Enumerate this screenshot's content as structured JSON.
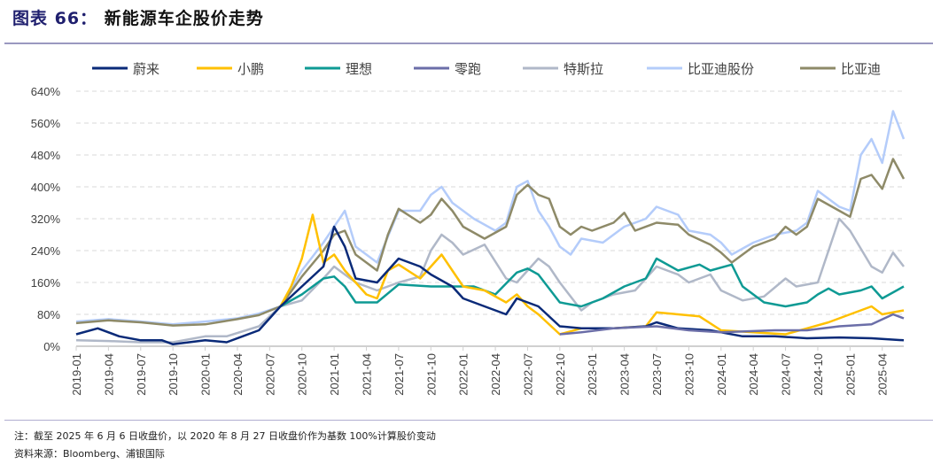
{
  "title": {
    "label": "图表 66：",
    "text": "新能源车企股价走势"
  },
  "footnote": "注：截至 2025 年 6 月 6 日收盘价，以 2020 年 8 月 27 日收盘价作为基数 100%计算股价变动",
  "source": "资料来源：Bloomberg、浦银国际",
  "chart_data": {
    "type": "line",
    "title": "新能源车企股价走势",
    "xlabel": "",
    "ylabel": "",
    "ylim": [
      0,
      640
    ],
    "yticks": [
      "0%",
      "80%",
      "160%",
      "240%",
      "320%",
      "400%",
      "480%",
      "560%",
      "640%"
    ],
    "xrange": [
      "2019-01",
      "2025-06"
    ],
    "xticks": [
      "2019-01",
      "2019-04",
      "2019-07",
      "2019-10",
      "2020-01",
      "2020-04",
      "2020-07",
      "2020-10",
      "2021-01",
      "2021-04",
      "2021-07",
      "2021-10",
      "2022-01",
      "2022-04",
      "2022-07",
      "2022-10",
      "2023-01",
      "2023-04",
      "2023-07",
      "2023-10",
      "2024-01",
      "2024-04",
      "2024-07",
      "2024-10",
      "2025-01",
      "2025-04"
    ],
    "grid": true,
    "legend": "top",
    "series": [
      {
        "name": "比亚迪股份",
        "color": "#b4ccfa",
        "points": [
          [
            "2019-01",
            62
          ],
          [
            "2019-04",
            68
          ],
          [
            "2019-07",
            62
          ],
          [
            "2019-10",
            55
          ],
          [
            "2020-01",
            62
          ],
          [
            "2020-04",
            70
          ],
          [
            "2020-06",
            82
          ],
          [
            "2020-08",
            100
          ],
          [
            "2020-10",
            190
          ],
          [
            "2020-12",
            260
          ],
          [
            "2021-02",
            340
          ],
          [
            "2021-03",
            250
          ],
          [
            "2021-05",
            210
          ],
          [
            "2021-07",
            340
          ],
          [
            "2021-09",
            340
          ],
          [
            "2021-10",
            380
          ],
          [
            "2021-11",
            400
          ],
          [
            "2021-12",
            360
          ],
          [
            "2022-02",
            320
          ],
          [
            "2022-04",
            290
          ],
          [
            "2022-05",
            310
          ],
          [
            "2022-06",
            400
          ],
          [
            "2022-07",
            415
          ],
          [
            "2022-08",
            340
          ],
          [
            "2022-09",
            300
          ],
          [
            "2022-10",
            250
          ],
          [
            "2022-11",
            230
          ],
          [
            "2022-12",
            270
          ],
          [
            "2023-02",
            260
          ],
          [
            "2023-04",
            300
          ],
          [
            "2023-06",
            320
          ],
          [
            "2023-07",
            350
          ],
          [
            "2023-09",
            330
          ],
          [
            "2023-10",
            290
          ],
          [
            "2023-12",
            280
          ],
          [
            "2024-01",
            260
          ],
          [
            "2024-02",
            230
          ],
          [
            "2024-04",
            260
          ],
          [
            "2024-06",
            280
          ],
          [
            "2024-08",
            290
          ],
          [
            "2024-09",
            310
          ],
          [
            "2024-10",
            390
          ],
          [
            "2024-12",
            350
          ],
          [
            "2025-01",
            340
          ],
          [
            "2025-02",
            480
          ],
          [
            "2025-03",
            520
          ],
          [
            "2025-04",
            460
          ],
          [
            "2025-05",
            590
          ],
          [
            "2025-06",
            520
          ]
        ]
      },
      {
        "name": "比亚迪",
        "color": "#8e8a68",
        "points": [
          [
            "2019-01",
            58
          ],
          [
            "2019-04",
            65
          ],
          [
            "2019-07",
            60
          ],
          [
            "2019-10",
            52
          ],
          [
            "2020-01",
            55
          ],
          [
            "2020-04",
            68
          ],
          [
            "2020-06",
            78
          ],
          [
            "2020-08",
            100
          ],
          [
            "2020-10",
            175
          ],
          [
            "2020-12",
            240
          ],
          [
            "2021-01",
            280
          ],
          [
            "2021-02",
            290
          ],
          [
            "2021-03",
            230
          ],
          [
            "2021-05",
            190
          ],
          [
            "2021-06",
            280
          ],
          [
            "2021-07",
            345
          ],
          [
            "2021-09",
            310
          ],
          [
            "2021-10",
            330
          ],
          [
            "2021-11",
            370
          ],
          [
            "2021-12",
            340
          ],
          [
            "2022-01",
            300
          ],
          [
            "2022-03",
            270
          ],
          [
            "2022-05",
            300
          ],
          [
            "2022-06",
            380
          ],
          [
            "2022-07",
            405
          ],
          [
            "2022-08",
            380
          ],
          [
            "2022-09",
            370
          ],
          [
            "2022-10",
            300
          ],
          [
            "2022-11",
            280
          ],
          [
            "2022-12",
            300
          ],
          [
            "2023-01",
            290
          ],
          [
            "2023-03",
            310
          ],
          [
            "2023-04",
            335
          ],
          [
            "2023-05",
            290
          ],
          [
            "2023-07",
            310
          ],
          [
            "2023-09",
            305
          ],
          [
            "2023-10",
            280
          ],
          [
            "2023-12",
            255
          ],
          [
            "2024-01",
            235
          ],
          [
            "2024-02",
            210
          ],
          [
            "2024-04",
            250
          ],
          [
            "2024-06",
            270
          ],
          [
            "2024-07",
            300
          ],
          [
            "2024-08",
            280
          ],
          [
            "2024-09",
            300
          ],
          [
            "2024-10",
            370
          ],
          [
            "2024-12",
            340
          ],
          [
            "2025-01",
            325
          ],
          [
            "2025-02",
            420
          ],
          [
            "2025-03",
            430
          ],
          [
            "2025-04",
            395
          ],
          [
            "2025-05",
            470
          ],
          [
            "2025-06",
            420
          ]
        ]
      },
      {
        "name": "特斯拉",
        "color": "#b0b8c8",
        "points": [
          [
            "2019-01",
            15
          ],
          [
            "2019-04",
            13
          ],
          [
            "2019-07",
            10
          ],
          [
            "2019-10",
            10
          ],
          [
            "2020-01",
            25
          ],
          [
            "2020-03",
            25
          ],
          [
            "2020-06",
            50
          ],
          [
            "2020-08",
            100
          ],
          [
            "2020-10",
            115
          ],
          [
            "2020-12",
            170
          ],
          [
            "2021-01",
            200
          ],
          [
            "2021-02",
            180
          ],
          [
            "2021-03",
            160
          ],
          [
            "2021-05",
            140
          ],
          [
            "2021-07",
            160
          ],
          [
            "2021-09",
            175
          ],
          [
            "2021-10",
            240
          ],
          [
            "2021-11",
            280
          ],
          [
            "2021-12",
            260
          ],
          [
            "2022-01",
            230
          ],
          [
            "2022-03",
            255
          ],
          [
            "2022-05",
            170
          ],
          [
            "2022-06",
            160
          ],
          [
            "2022-08",
            220
          ],
          [
            "2022-09",
            200
          ],
          [
            "2022-10",
            160
          ],
          [
            "2022-12",
            90
          ],
          [
            "2023-01",
            110
          ],
          [
            "2023-03",
            130
          ],
          [
            "2023-05",
            140
          ],
          [
            "2023-07",
            200
          ],
          [
            "2023-09",
            180
          ],
          [
            "2023-10",
            160
          ],
          [
            "2023-12",
            180
          ],
          [
            "2024-01",
            140
          ],
          [
            "2024-03",
            115
          ],
          [
            "2024-05",
            125
          ],
          [
            "2024-07",
            170
          ],
          [
            "2024-08",
            150
          ],
          [
            "2024-10",
            160
          ],
          [
            "2024-11",
            240
          ],
          [
            "2024-12",
            320
          ],
          [
            "2025-01",
            290
          ],
          [
            "2025-03",
            200
          ],
          [
            "2025-04",
            185
          ],
          [
            "2025-05",
            235
          ],
          [
            "2025-06",
            200
          ]
        ]
      },
      {
        "name": "理想",
        "color": "#0e9a94",
        "points": [
          [
            "2020-08",
            100
          ],
          [
            "2020-10",
            130
          ],
          [
            "2020-12",
            170
          ],
          [
            "2021-01",
            175
          ],
          [
            "2021-02",
            150
          ],
          [
            "2021-03",
            110
          ],
          [
            "2021-05",
            110
          ],
          [
            "2021-07",
            155
          ],
          [
            "2021-10",
            150
          ],
          [
            "2021-12",
            150
          ],
          [
            "2022-02",
            150
          ],
          [
            "2022-04",
            130
          ],
          [
            "2022-06",
            185
          ],
          [
            "2022-07",
            195
          ],
          [
            "2022-08",
            180
          ],
          [
            "2022-10",
            110
          ],
          [
            "2022-12",
            100
          ],
          [
            "2023-02",
            120
          ],
          [
            "2023-04",
            150
          ],
          [
            "2023-06",
            170
          ],
          [
            "2023-07",
            220
          ],
          [
            "2023-09",
            190
          ],
          [
            "2023-11",
            205
          ],
          [
            "2023-12",
            190
          ],
          [
            "2024-02",
            205
          ],
          [
            "2024-03",
            150
          ],
          [
            "2024-05",
            110
          ],
          [
            "2024-07",
            100
          ],
          [
            "2024-09",
            110
          ],
          [
            "2024-10",
            130
          ],
          [
            "2024-11",
            145
          ],
          [
            "2024-12",
            130
          ],
          [
            "2025-02",
            140
          ],
          [
            "2025-03",
            150
          ],
          [
            "2025-04",
            120
          ],
          [
            "2025-06",
            150
          ]
        ]
      },
      {
        "name": "小鹏",
        "color": "#ffc000",
        "points": [
          [
            "2020-08",
            100
          ],
          [
            "2020-09",
            150
          ],
          [
            "2020-10",
            220
          ],
          [
            "2020-11",
            330
          ],
          [
            "2020-12",
            210
          ],
          [
            "2021-01",
            230
          ],
          [
            "2021-02",
            190
          ],
          [
            "2021-03",
            160
          ],
          [
            "2021-04",
            130
          ],
          [
            "2021-05",
            120
          ],
          [
            "2021-06",
            190
          ],
          [
            "2021-07",
            205
          ],
          [
            "2021-09",
            170
          ],
          [
            "2021-10",
            200
          ],
          [
            "2021-11",
            230
          ],
          [
            "2021-12",
            190
          ],
          [
            "2022-01",
            150
          ],
          [
            "2022-03",
            140
          ],
          [
            "2022-05",
            110
          ],
          [
            "2022-06",
            130
          ],
          [
            "2022-07",
            100
          ],
          [
            "2022-08",
            80
          ],
          [
            "2022-10",
            30
          ],
          [
            "2022-12",
            45
          ],
          [
            "2023-03",
            45
          ],
          [
            "2023-06",
            50
          ],
          [
            "2023-07",
            85
          ],
          [
            "2023-09",
            80
          ],
          [
            "2023-11",
            75
          ],
          [
            "2024-01",
            40
          ],
          [
            "2024-04",
            35
          ],
          [
            "2024-07",
            30
          ],
          [
            "2024-09",
            45
          ],
          [
            "2024-11",
            60
          ],
          [
            "2024-12",
            70
          ],
          [
            "2025-02",
            90
          ],
          [
            "2025-03",
            100
          ],
          [
            "2025-04",
            80
          ],
          [
            "2025-06",
            90
          ]
        ]
      },
      {
        "name": "蔚来",
        "color": "#0a2a78",
        "points": [
          [
            "2019-01",
            30
          ],
          [
            "2019-03",
            45
          ],
          [
            "2019-05",
            25
          ],
          [
            "2019-07",
            15
          ],
          [
            "2019-09",
            15
          ],
          [
            "2019-10",
            5
          ],
          [
            "2020-01",
            15
          ],
          [
            "2020-03",
            10
          ],
          [
            "2020-06",
            40
          ],
          [
            "2020-08",
            100
          ],
          [
            "2020-10",
            150
          ],
          [
            "2020-12",
            200
          ],
          [
            "2021-01",
            300
          ],
          [
            "2021-02",
            250
          ],
          [
            "2021-03",
            170
          ],
          [
            "2021-05",
            160
          ],
          [
            "2021-07",
            220
          ],
          [
            "2021-09",
            200
          ],
          [
            "2021-10",
            180
          ],
          [
            "2021-12",
            150
          ],
          [
            "2022-01",
            120
          ],
          [
            "2022-03",
            100
          ],
          [
            "2022-05",
            80
          ],
          [
            "2022-06",
            120
          ],
          [
            "2022-08",
            100
          ],
          [
            "2022-10",
            50
          ],
          [
            "2022-12",
            45
          ],
          [
            "2023-03",
            45
          ],
          [
            "2023-06",
            50
          ],
          [
            "2023-07",
            60
          ],
          [
            "2023-09",
            45
          ],
          [
            "2023-12",
            40
          ],
          [
            "2024-03",
            25
          ],
          [
            "2024-06",
            25
          ],
          [
            "2024-09",
            20
          ],
          [
            "2024-12",
            22
          ],
          [
            "2025-03",
            20
          ],
          [
            "2025-06",
            15
          ]
        ]
      },
      {
        "name": "零跑",
        "color": "#6b6ea8",
        "points": [
          [
            "2022-10",
            30
          ],
          [
            "2022-12",
            35
          ],
          [
            "2023-03",
            45
          ],
          [
            "2023-07",
            50
          ],
          [
            "2023-10",
            40
          ],
          [
            "2024-01",
            35
          ],
          [
            "2024-06",
            40
          ],
          [
            "2024-09",
            40
          ],
          [
            "2024-12",
            50
          ],
          [
            "2025-03",
            55
          ],
          [
            "2025-05",
            80
          ],
          [
            "2025-06",
            70
          ]
        ]
      }
    ],
    "legend_order": [
      "蔚来",
      "小鹏",
      "理想",
      "零跑",
      "特斯拉",
      "比亚迪股份",
      "比亚迪"
    ]
  }
}
